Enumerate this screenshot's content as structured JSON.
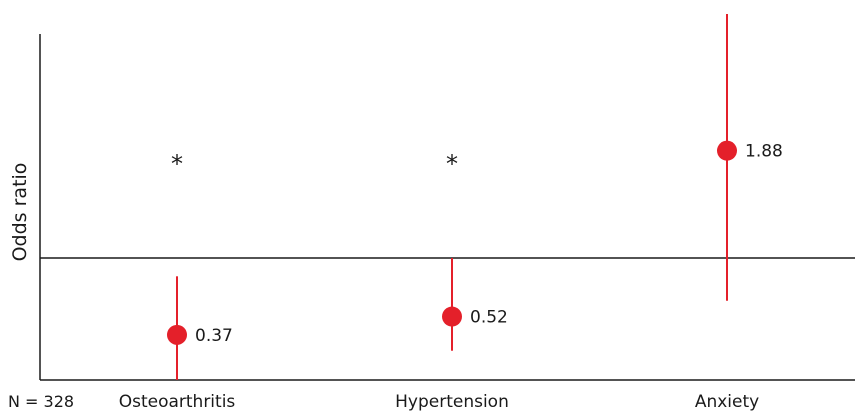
{
  "chart_data": {
    "type": "scatter",
    "title": "",
    "xlabel": "",
    "ylabel": "Odds ratio",
    "ylim": [
      0,
      3
    ],
    "reference_line": 1,
    "note": "N = 328",
    "categories": [
      "Osteoarthritis",
      "Hypertension",
      "Anxiety"
    ],
    "series": [
      {
        "values": [
          0.37,
          0.52,
          1.88
        ],
        "lower": [
          0.0,
          0.24,
          0.65
        ],
        "upper": [
          0.85,
          1.0,
          3.0
        ],
        "labels": [
          "0.37",
          "0.52",
          "1.88"
        ],
        "significant": [
          true,
          true,
          false
        ],
        "significance_mark": "*"
      }
    ],
    "colors": {
      "marker": "#e4202a",
      "axis": "#1a1a1a"
    },
    "grid": false
  }
}
